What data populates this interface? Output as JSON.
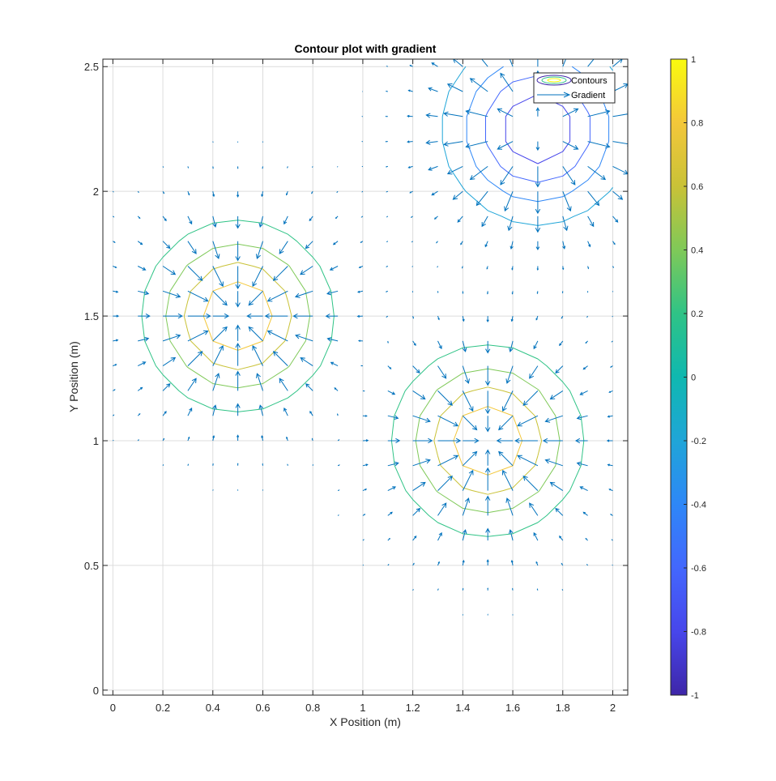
{
  "chart_data": {
    "type": "contour",
    "title": "Contour plot with gradient",
    "xlabel": "X Position (m)",
    "ylabel": "Y Position (m)",
    "xlim": [
      -0.04,
      2.06
    ],
    "ylim": [
      -0.02,
      2.53
    ],
    "xticks": [
      0,
      0.2,
      0.4,
      0.6,
      0.8,
      1,
      1.2,
      1.4,
      1.6,
      1.8,
      2
    ],
    "xtick_labels": [
      "0",
      "0.2",
      "0.4",
      "0.6",
      "0.8",
      "1",
      "1.2",
      "1.4",
      "1.6",
      "1.8",
      "2"
    ],
    "yticks": [
      0,
      0.5,
      1,
      1.5,
      2,
      2.5
    ],
    "ytick_labels": [
      "0",
      "0.5",
      "1",
      "1.5",
      "2",
      "2.5"
    ],
    "grid": true,
    "legend": {
      "location": "top-right",
      "entries": [
        "Contours",
        "Gradient"
      ]
    },
    "colorbar": {
      "limits": [
        -1,
        1
      ],
      "ticks": [
        -1,
        -0.8,
        -0.6,
        -0.4,
        -0.2,
        0,
        0.2,
        0.4,
        0.6,
        0.8,
        1
      ],
      "tick_labels": [
        "-1",
        "-0.8",
        "-0.6",
        "-0.4",
        "-0.2",
        "0",
        "0.2",
        "0.4",
        "0.6",
        "0.8",
        "1"
      ],
      "colormap": [
        "#3e26a8",
        "#4746eb",
        "#4367fd",
        "#2e87f7",
        "#1fa5d8",
        "#0fb8b0",
        "#2fc386",
        "#7fc958",
        "#c9c237",
        "#f3c73a",
        "#f9fb0e"
      ]
    },
    "function": {
      "peaks": [
        {
          "center": [
            0.5,
            1.5
          ],
          "sigma": [
            0.3,
            0.3
          ],
          "amplitude": 1
        },
        {
          "center": [
            1.5,
            1.0
          ],
          "sigma": [
            0.3,
            0.3
          ],
          "amplitude": 1
        },
        {
          "center": [
            1.7,
            2.25
          ],
          "sigma": [
            0.3,
            0.3
          ],
          "amplitude": -1
        }
      ],
      "grid_step": 0.1
    },
    "contour_levels": [
      -0.8,
      -0.6,
      -0.4,
      -0.2,
      0.2,
      0.4,
      0.6,
      0.8
    ],
    "quiver": {
      "x_range": [
        0,
        2
      ],
      "y_range": [
        0,
        2.5
      ],
      "step": 0.1,
      "color": "#0072bd"
    }
  }
}
